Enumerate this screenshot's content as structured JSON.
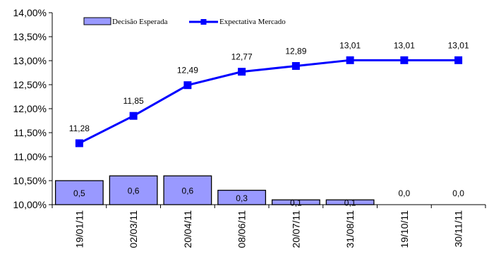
{
  "chart_data": {
    "type": "bar",
    "categories": [
      "19/01/11",
      "02/03/11",
      "20/04/11",
      "08/06/11",
      "20/07/11",
      "31/08/11",
      "19/10/11",
      "30/11/11"
    ],
    "series": [
      {
        "name": "Decisão Esperada",
        "type": "bar",
        "values": [
          0.5,
          0.6,
          0.6,
          0.3,
          0.1,
          0.1,
          0.0,
          0.0
        ],
        "labels": [
          "0,5",
          "0,6",
          "0,6",
          "0,3",
          "0,1",
          "0,1",
          "0,0",
          "0,0"
        ],
        "color": "#9999ff"
      },
      {
        "name": "Expectativa Mercado",
        "type": "line",
        "values": [
          11.28,
          11.85,
          12.49,
          12.77,
          12.89,
          13.01,
          13.01,
          13.01
        ],
        "labels": [
          "11,28",
          "11,85",
          "12,49",
          "12,77",
          "12,89",
          "13,01",
          "13,01",
          "13,01"
        ],
        "color": "#0000ff"
      }
    ],
    "y_ticks": [
      "10,00%",
      "10,50%",
      "11,00%",
      "11,50%",
      "12,00%",
      "12,50%",
      "13,00%",
      "13,50%",
      "14,00%"
    ],
    "ylim": [
      10,
      14
    ],
    "legend_position": "top",
    "grid": false
  }
}
